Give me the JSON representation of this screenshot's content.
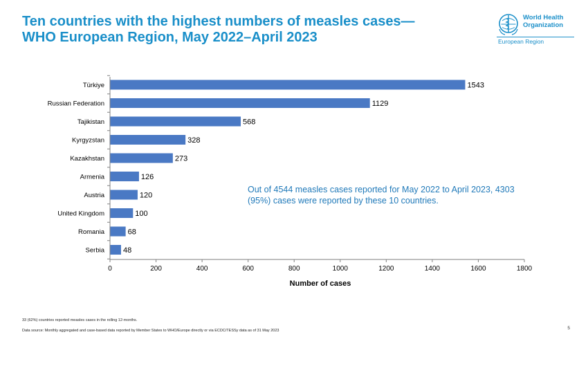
{
  "slide": {
    "title_line1": "Ten countries with the highest numbers of measles cases—",
    "title_line2": "WHO European Region, May 2022–April 2023",
    "logo_name_line1": "World Health",
    "logo_name_line2": "Organization",
    "logo_region": "European Region",
    "annotation": "Out of 4544 measles cases reported for May 2022 to April 2023, 4303 (95%) cases were reported by these 10 countries.",
    "footnote": "33 (62%) countries reported measles cases in the rolling 12-months.",
    "source": "Data source: Monthly aggregated and case-based data reported by Member States to WHO/Europe directly or via ECDC/TESSy data as of 31 May 2023",
    "page_number": "5"
  },
  "colors": {
    "title": "#1a8fc9",
    "bar": "#4a79c4",
    "annotation": "#1f79b9"
  },
  "chart_data": {
    "type": "bar",
    "orientation": "horizontal",
    "categories": [
      "Türkiye",
      "Russian Federation",
      "Tajikistan",
      "Kyrgyzstan",
      "Kazakhstan",
      "Armenia",
      "Austria",
      "United Kingdom",
      "Romania",
      "Serbia"
    ],
    "values": [
      1543,
      1129,
      568,
      328,
      273,
      126,
      120,
      100,
      68,
      48
    ],
    "data_labels": [
      "1543",
      "1129",
      "568",
      "328",
      "273",
      "126",
      "120",
      "100",
      "68",
      "48"
    ],
    "xlabel": "Number of cases",
    "ylabel": "",
    "xlim": [
      0,
      1800
    ],
    "xticks": [
      "0",
      "200",
      "400",
      "600",
      "800",
      "1000",
      "1200",
      "1400",
      "1600",
      "1800"
    ],
    "grid": false,
    "legend": "none"
  }
}
